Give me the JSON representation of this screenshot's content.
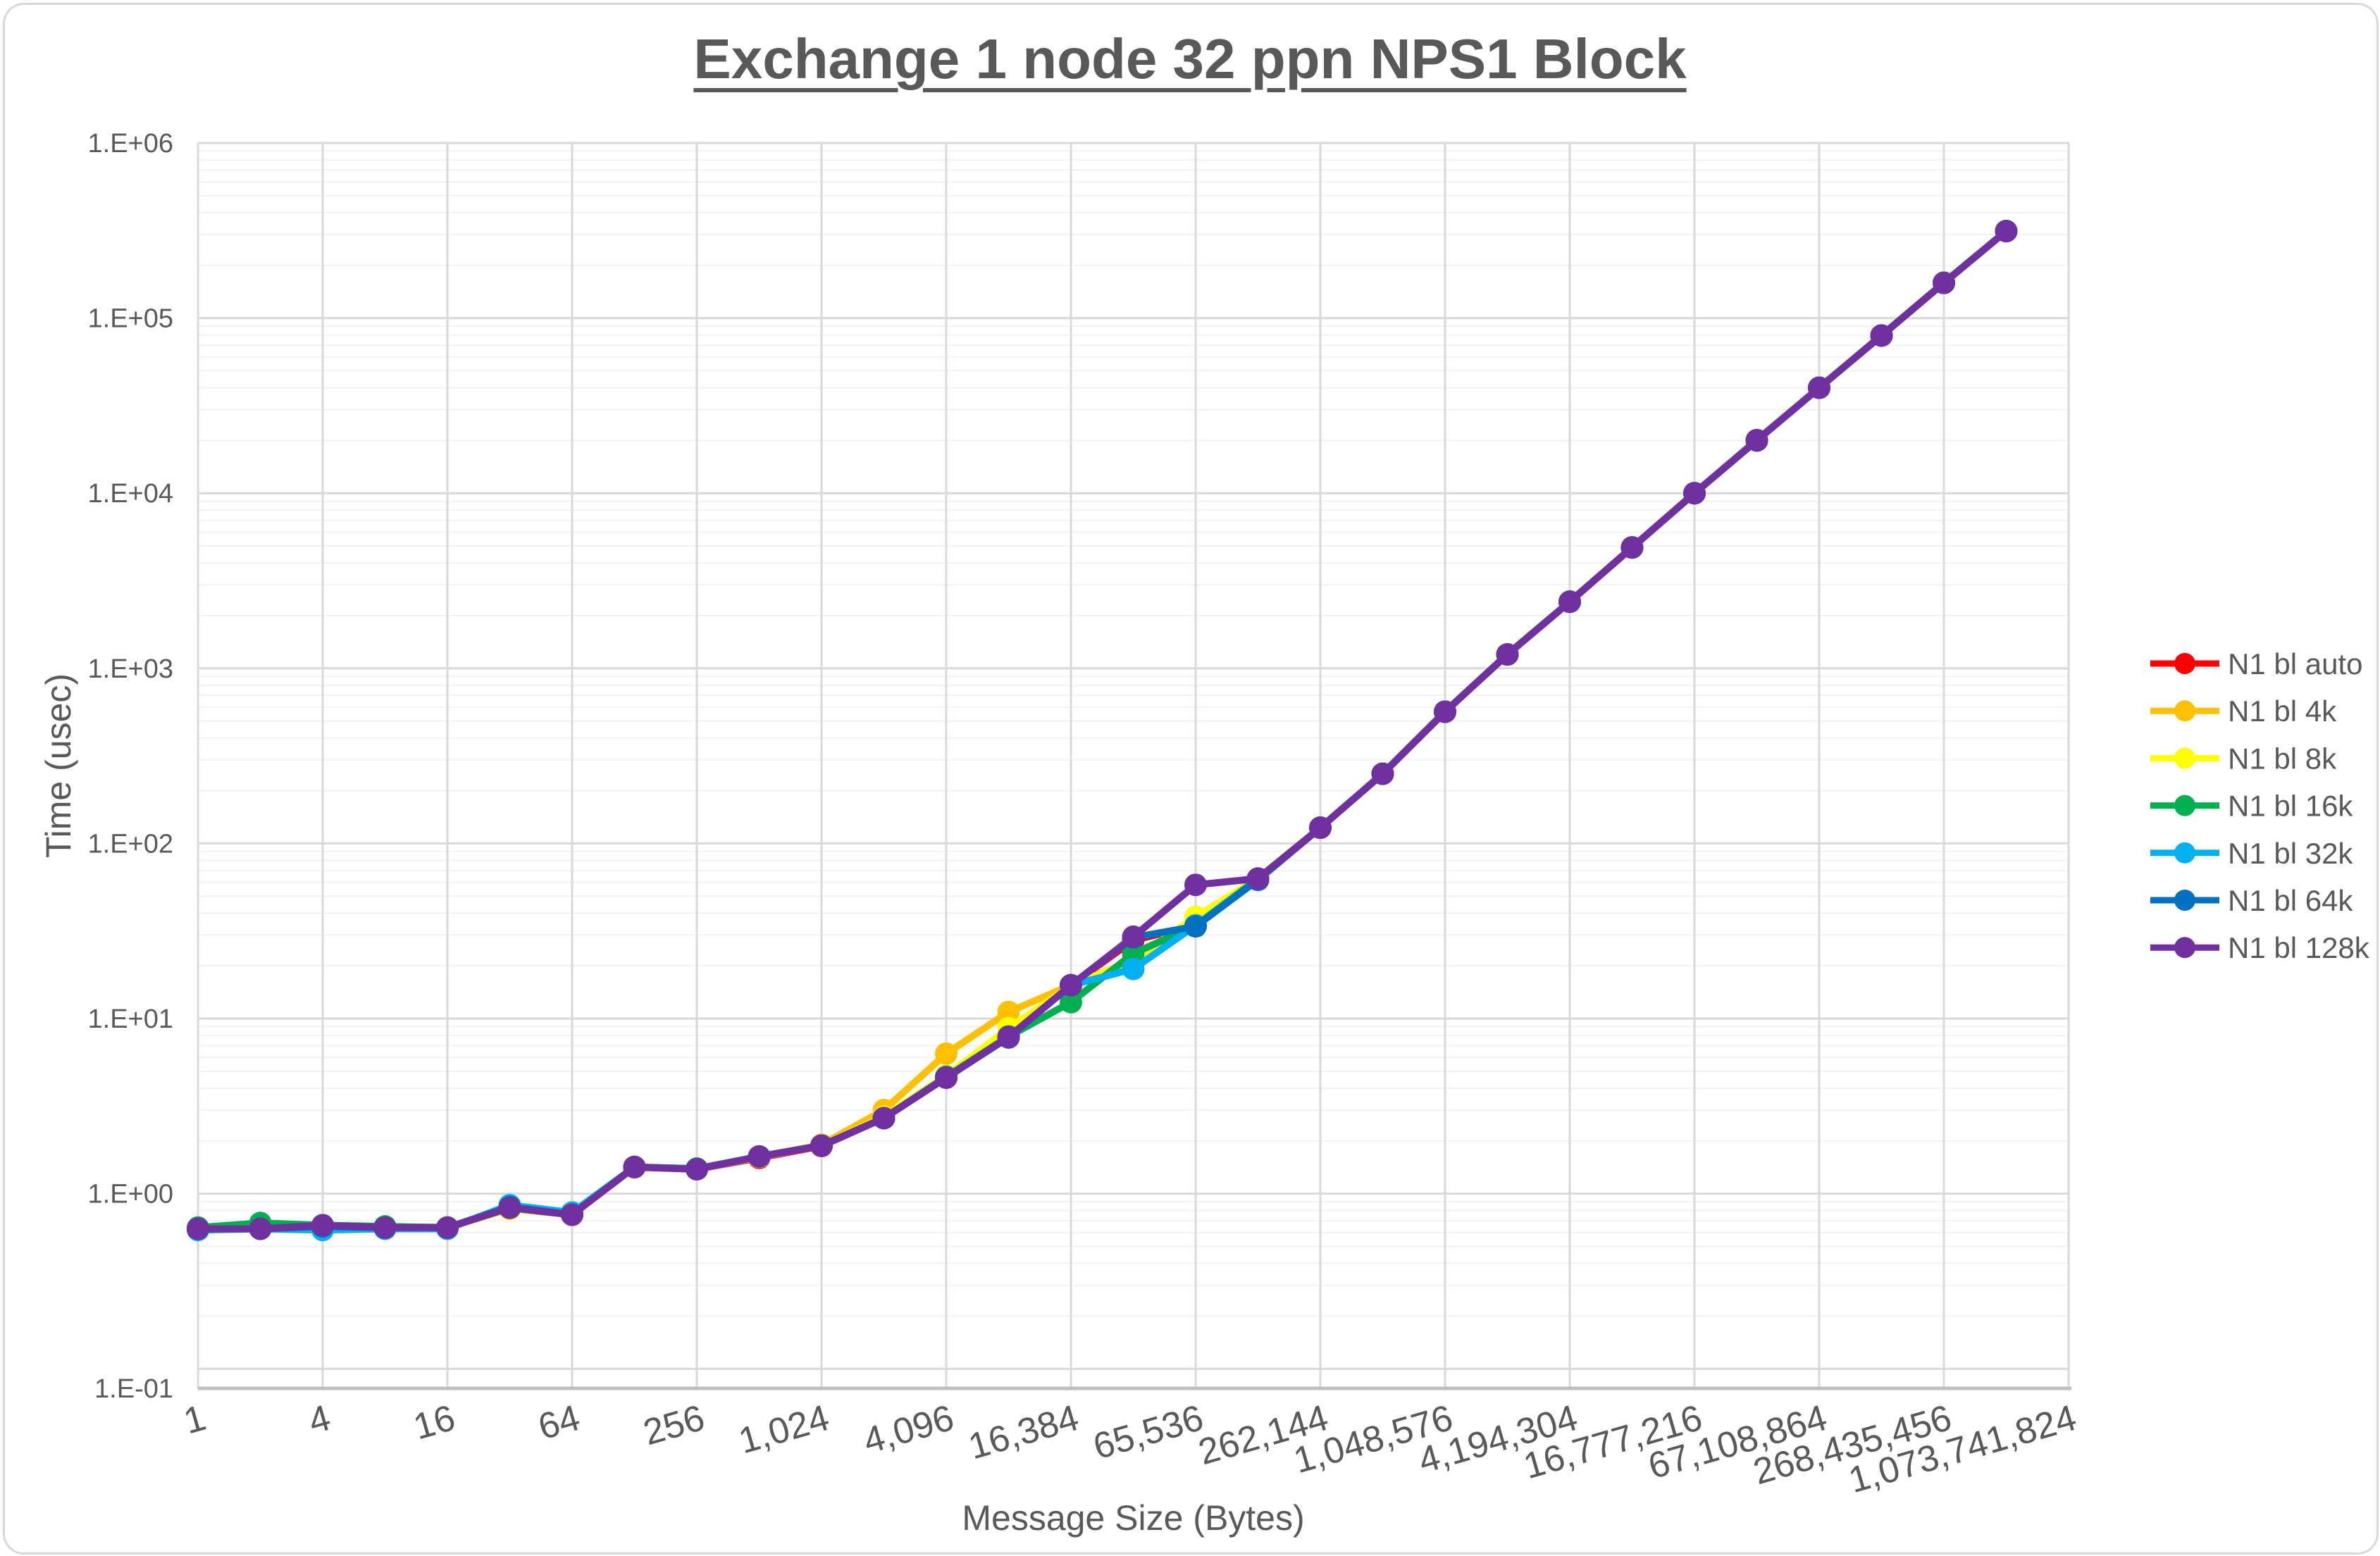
{
  "title": "Exchange 1 node 32 ppn NPS1 Block",
  "axes": {
    "x_title": "Message Size (Bytes)",
    "y_title": "Time (usec)",
    "y_tick_labels": [
      "1.E+06",
      "1.E+05",
      "1.E+04",
      "1.E+03",
      "1.E+02",
      "1.E+01",
      "1.E+00",
      "1.E-01"
    ],
    "x_tick_labels": [
      "1",
      "4",
      "16",
      "64",
      "256",
      "1,024",
      "4,096",
      "16,384",
      "65,536",
      "262,144",
      "1,048,576",
      "4,194,304",
      "16,777,216",
      "67,108,864",
      "268,435,456",
      "1,073,741,824"
    ]
  },
  "legend": {
    "position": "right",
    "items": [
      {
        "label": "N1 bl auto",
        "color": "#FF0000"
      },
      {
        "label": "N1 bl 4k",
        "color": "#FFC000"
      },
      {
        "label": "N1 bl 8k",
        "color": "#FFFF00"
      },
      {
        "label": "N1 bl 16k",
        "color": "#00B050"
      },
      {
        "label": "N1 bl 32k",
        "color": "#00B0F0"
      },
      {
        "label": "N1 bl 64k",
        "color": "#0070C0"
      },
      {
        "label": "N1 bl 128k",
        "color": "#7030A0"
      }
    ]
  },
  "colors": {
    "text": "#595959",
    "grid_major": "#D9D9D9",
    "grid_minor": "#F2F2F2",
    "axis_line": "#BFBFBF",
    "frame_border": "#D9D9D9",
    "background": "#FFFFFF"
  },
  "chart_data": {
    "type": "line",
    "title": "Exchange 1 node 32 ppn NPS1 Block",
    "xlabel": "Message Size (Bytes)",
    "ylabel": "Time (usec)",
    "x_scale": "log2-category",
    "y_scale": "log10",
    "ylim": [
      0.1,
      1000000
    ],
    "x_axis_max": 1073741824,
    "grid": "major+minor",
    "legend_position": "right",
    "x_sizes": [
      1,
      2,
      4,
      8,
      16,
      32,
      64,
      128,
      256,
      512,
      1024,
      2048,
      4096,
      8192,
      16384,
      32768,
      65536,
      131072,
      262144,
      524288,
      1048576,
      2097152,
      4194304,
      8388608,
      16777216,
      33554432,
      67108864,
      134217728,
      268435456,
      536870912
    ],
    "series": [
      {
        "name": "N1 bl auto",
        "color": "#FF0000",
        "values": [
          0.63,
          0.63,
          0.66,
          0.64,
          0.64,
          0.82,
          0.76,
          1.42,
          1.38,
          1.6,
          1.87,
          2.7,
          4.6,
          7.9,
          15.5,
          28,
          34,
          62,
          123,
          250,
          565,
          1200,
          2400,
          4900,
          10000,
          20000,
          40000,
          79500,
          159000,
          314000
        ]
      },
      {
        "name": "N1 bl 4k",
        "color": "#FFC000",
        "values": [
          0.63,
          0.63,
          0.66,
          0.64,
          0.64,
          0.82,
          0.76,
          1.41,
          1.38,
          1.62,
          1.9,
          3.0,
          6.3,
          10.9,
          15.5,
          21.5,
          38,
          63,
          123,
          250,
          565,
          1200,
          2400,
          4900,
          10000,
          20000,
          40000,
          79500,
          159000,
          314000
        ]
      },
      {
        "name": "N1 bl 8k",
        "color": "#FFFF00",
        "values": [
          0.63,
          0.67,
          0.65,
          0.65,
          0.64,
          0.82,
          0.76,
          1.42,
          1.38,
          1.62,
          1.88,
          2.75,
          4.7,
          8.8,
          15.3,
          21.5,
          38,
          63,
          123,
          250,
          565,
          1200,
          2400,
          4900,
          10000,
          20000,
          40000,
          79500,
          159000,
          314000
        ]
      },
      {
        "name": "N1 bl 16k",
        "color": "#00B050",
        "values": [
          0.64,
          0.68,
          0.66,
          0.65,
          0.64,
          0.83,
          0.76,
          1.42,
          1.39,
          1.63,
          1.88,
          2.7,
          4.65,
          7.9,
          12.4,
          23.5,
          34,
          63,
          123,
          250,
          565,
          1200,
          2400,
          4900,
          10000,
          20000,
          40000,
          79500,
          159000,
          314000
        ]
      },
      {
        "name": "N1 bl 32k",
        "color": "#00B0F0",
        "values": [
          0.62,
          0.63,
          0.62,
          0.63,
          0.63,
          0.86,
          0.78,
          1.42,
          1.38,
          1.63,
          1.88,
          2.7,
          4.6,
          7.8,
          15.5,
          19.2,
          34,
          62,
          123,
          250,
          565,
          1200,
          2400,
          4900,
          10000,
          20000,
          40000,
          79500,
          159000,
          314000
        ]
      },
      {
        "name": "N1 bl 64k",
        "color": "#0070C0",
        "values": [
          0.63,
          0.63,
          0.65,
          0.64,
          0.64,
          0.84,
          0.76,
          1.42,
          1.38,
          1.63,
          1.88,
          2.7,
          4.6,
          7.8,
          15.5,
          29,
          33.6,
          62,
          123,
          250,
          565,
          1200,
          2400,
          4900,
          10000,
          20000,
          40000,
          79500,
          159000,
          314000
        ]
      },
      {
        "name": "N1 bl 128k",
        "color": "#7030A0",
        "values": [
          0.63,
          0.63,
          0.66,
          0.64,
          0.64,
          0.83,
          0.757,
          1.42,
          1.38,
          1.63,
          1.88,
          2.7,
          4.6,
          7.85,
          15.5,
          29.3,
          58,
          63,
          123,
          250,
          565,
          1200,
          2400,
          4900,
          10000,
          20100,
          40000,
          79500,
          159000,
          314000
        ]
      }
    ]
  }
}
